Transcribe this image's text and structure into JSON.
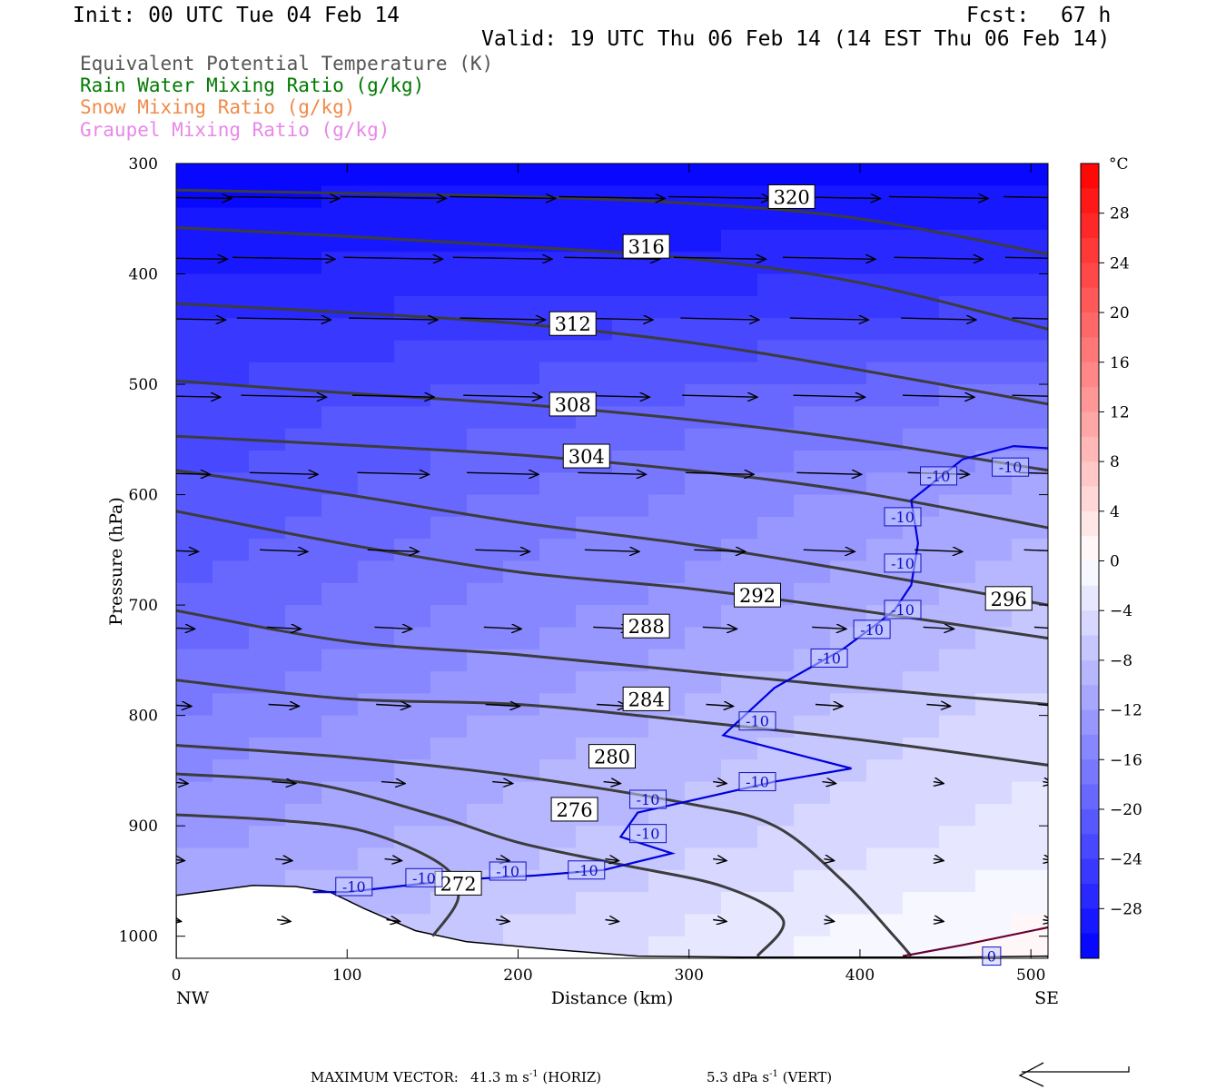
{
  "header": {
    "init": "Init: 00 UTC Tue 04 Feb 14",
    "fcst_label": "Fcst:",
    "fcst_value": "67 h",
    "valid": "Valid: 19 UTC Thu 06 Feb 14 (14 EST Thu 06 Feb 14)"
  },
  "fields": [
    {
      "label": "Equivalent Potential Temperature (K)",
      "color": "#555555"
    },
    {
      "label": "Rain Water Mixing Ratio (g/kg)",
      "color": "#007a00"
    },
    {
      "label": "Snow Mixing Ratio (g/kg)",
      "color": "#f08a4a"
    },
    {
      "label": "Graupel Mixing Ratio (g/kg)",
      "color": "#e888e8"
    }
  ],
  "footer": {
    "max_vector_label": "MAXIMUM VECTOR:",
    "horiz_value": "41.3",
    "horiz_unit": "m s",
    "horiz_exp": "-1",
    "horiz_tag": "(HORIZ)",
    "vert_value": "5.3",
    "vert_unit": "dPa s",
    "vert_exp": "-1",
    "vert_tag": "(VERT)"
  },
  "chart_data": {
    "type": "cross-section",
    "xlabel": "Distance (km)",
    "ylabel": "Pressure (hPa)",
    "xlim": [
      0,
      510
    ],
    "ylim": [
      1020,
      300
    ],
    "x_ticks": [
      0,
      100,
      200,
      300,
      400,
      500
    ],
    "y_ticks": [
      300,
      400,
      500,
      600,
      700,
      800,
      900,
      1000
    ],
    "x_end_labels": {
      "left": "NW",
      "right": "SE"
    },
    "colorbar": {
      "unit": "°C",
      "tick_labels": [
        28,
        24,
        20,
        16,
        12,
        8,
        4,
        0,
        -4,
        -8,
        -12,
        -16,
        -20,
        -24,
        -28
      ],
      "range": [
        -32,
        32
      ],
      "step": 2
    },
    "terrain_hpa": [
      [
        0,
        963
      ],
      [
        25,
        958
      ],
      [
        45,
        954
      ],
      [
        70,
        955
      ],
      [
        90,
        960
      ],
      [
        110,
        975
      ],
      [
        140,
        995
      ],
      [
        170,
        1005
      ],
      [
        220,
        1012
      ],
      [
        270,
        1018
      ],
      [
        330,
        1019
      ],
      [
        400,
        1019
      ],
      [
        460,
        1019
      ],
      [
        510,
        1018
      ]
    ],
    "temperature_field": [
      {
        "p": 300,
        "left": -31,
        "right": -31
      },
      {
        "p": 400,
        "left": -28,
        "right": -26
      },
      {
        "p": 500,
        "left": -24,
        "right": -18
      },
      {
        "p": 600,
        "left": -22,
        "right": -11
      },
      {
        "p": 700,
        "left": -20,
        "right": -8
      },
      {
        "p": 800,
        "left": -16,
        "right": -5
      },
      {
        "p": 900,
        "left": -13,
        "right": -3
      },
      {
        "p": 1000,
        "left": -10,
        "right": 1
      }
    ],
    "theta_e_contours": [
      {
        "label": "320",
        "label_at": [
          360,
          330
        ],
        "points": [
          [
            0,
            324
          ],
          [
            100,
            327
          ],
          [
            200,
            330
          ],
          [
            300,
            336
          ],
          [
            400,
            350
          ],
          [
            510,
            382
          ]
        ]
      },
      {
        "label": "316",
        "label_at": [
          275,
          375
        ],
        "points": [
          [
            0,
            358
          ],
          [
            100,
            366
          ],
          [
            200,
            375
          ],
          [
            300,
            386
          ],
          [
            400,
            408
          ],
          [
            510,
            450
          ]
        ]
      },
      {
        "label": "312",
        "label_at": [
          232,
          445
        ],
        "points": [
          [
            0,
            427
          ],
          [
            100,
            435
          ],
          [
            200,
            445
          ],
          [
            300,
            462
          ],
          [
            400,
            487
          ],
          [
            510,
            518
          ]
        ]
      },
      {
        "label": "308",
        "label_at": [
          232,
          518
        ],
        "points": [
          [
            0,
            497
          ],
          [
            100,
            508
          ],
          [
            200,
            518
          ],
          [
            300,
            532
          ],
          [
            400,
            551
          ],
          [
            510,
            578
          ]
        ]
      },
      {
        "label": "304",
        "label_at": [
          240,
          565
        ],
        "points": [
          [
            0,
            547
          ],
          [
            100,
            555
          ],
          [
            200,
            564
          ],
          [
            300,
            578
          ],
          [
            400,
            598
          ],
          [
            510,
            630
          ]
        ]
      },
      {
        "label": "292",
        "label_at": [
          340,
          691
        ],
        "points": [
          [
            0,
            615
          ],
          [
            100,
            645
          ],
          [
            200,
            670
          ],
          [
            300,
            685
          ],
          [
            400,
            705
          ],
          [
            510,
            730
          ]
        ]
      },
      {
        "label": "296",
        "label_at": [
          487,
          694
        ],
        "points": [
          [
            0,
            578
          ],
          [
            100,
            600
          ],
          [
            200,
            625
          ],
          [
            300,
            645
          ],
          [
            400,
            670
          ],
          [
            510,
            700
          ]
        ]
      },
      {
        "label": "288",
        "label_at": [
          275,
          719
        ],
        "points": [
          [
            0,
            705
          ],
          [
            100,
            733
          ],
          [
            200,
            745
          ],
          [
            300,
            760
          ],
          [
            400,
            775
          ],
          [
            510,
            790
          ]
        ]
      },
      {
        "label": "284",
        "label_at": [
          275,
          785
        ],
        "points": [
          [
            0,
            768
          ],
          [
            100,
            785
          ],
          [
            200,
            790
          ],
          [
            300,
            805
          ],
          [
            400,
            822
          ],
          [
            510,
            845
          ]
        ]
      },
      {
        "label": "280",
        "label_at": [
          255,
          837
        ],
        "points": [
          [
            0,
            827
          ],
          [
            100,
            838
          ],
          [
            200,
            855
          ],
          [
            300,
            880
          ],
          [
            350,
            900
          ],
          [
            390,
            950
          ],
          [
            420,
            1000
          ],
          [
            430,
            1018
          ]
        ]
      },
      {
        "label": "276",
        "label_at": [
          233,
          885
        ],
        "points": [
          [
            0,
            853
          ],
          [
            80,
            862
          ],
          [
            150,
            890
          ],
          [
            200,
            915
          ],
          [
            260,
            935
          ],
          [
            320,
            955
          ],
          [
            355,
            985
          ],
          [
            340,
            1018
          ]
        ]
      },
      {
        "label": "272",
        "label_at": [
          165,
          952
        ],
        "points": [
          [
            0,
            890
          ],
          [
            60,
            895
          ],
          [
            110,
            905
          ],
          [
            155,
            935
          ],
          [
            165,
            965
          ],
          [
            150,
            1000
          ]
        ]
      }
    ],
    "isotherms": [
      {
        "value": -10,
        "color": "#0000dd",
        "points": [
          [
            80,
            960
          ],
          [
            100,
            960
          ],
          [
            140,
            953
          ],
          [
            175,
            948
          ],
          [
            210,
            945
          ],
          [
            250,
            940
          ],
          [
            290,
            925
          ],
          [
            260,
            910
          ],
          [
            270,
            888
          ],
          [
            350,
            860
          ],
          [
            395,
            848
          ],
          [
            320,
            818
          ],
          [
            350,
            775
          ],
          [
            390,
            740
          ],
          [
            410,
            717
          ],
          [
            420,
            705
          ],
          [
            430,
            682
          ],
          [
            434,
            644
          ],
          [
            430,
            605
          ],
          [
            460,
            568
          ],
          [
            490,
            556
          ],
          [
            510,
            558
          ]
        ]
      },
      {
        "value": 0,
        "color": "#660033",
        "points": [
          [
            425,
            1018
          ],
          [
            460,
            1008
          ],
          [
            510,
            992
          ]
        ]
      }
    ],
    "isotherm_labels": [
      {
        "text": "-10",
        "at": [
          104,
          955
        ]
      },
      {
        "text": "-10",
        "at": [
          145,
          947
        ]
      },
      {
        "text": "-10",
        "at": [
          194,
          941
        ]
      },
      {
        "text": "-10",
        "at": [
          240,
          940
        ]
      },
      {
        "text": "-10",
        "at": [
          276,
          907
        ]
      },
      {
        "text": "-10",
        "at": [
          276,
          876
        ]
      },
      {
        "text": "-10",
        "at": [
          340,
          860
        ]
      },
      {
        "text": "-10",
        "at": [
          340,
          805
        ]
      },
      {
        "text": "-10",
        "at": [
          382,
          748
        ]
      },
      {
        "text": "-10",
        "at": [
          407,
          722
        ]
      },
      {
        "text": "-10",
        "at": [
          425,
          704
        ]
      },
      {
        "text": "-10",
        "at": [
          425,
          662
        ]
      },
      {
        "text": "-10",
        "at": [
          425,
          620
        ]
      },
      {
        "text": "-10",
        "at": [
          446,
          583
        ]
      },
      {
        "text": "-10",
        "at": [
          488,
          575
        ]
      },
      {
        "text": "0",
        "at": [
          477,
          1018
        ]
      }
    ],
    "wind_vectors": {
      "columns_km": [
        0,
        63,
        127,
        191,
        255,
        318,
        382,
        446,
        510
      ],
      "levels": [
        {
          "p": 330,
          "lengths_km": [
            65,
            65,
            62,
            62,
            62,
            60,
            60,
            58,
            52
          ]
        },
        {
          "p": 385,
          "lengths_km": [
            60,
            60,
            58,
            58,
            56,
            54,
            54,
            52,
            50
          ]
        },
        {
          "p": 440,
          "lengths_km": [
            58,
            55,
            52,
            50,
            48,
            46,
            46,
            44,
            42
          ]
        },
        {
          "p": 510,
          "lengths_km": [
            52,
            50,
            48,
            46,
            44,
            44,
            42,
            42,
            42
          ]
        },
        {
          "p": 580,
          "lengths_km": [
            40,
            40,
            42,
            42,
            40,
            40,
            38,
            36,
            34
          ]
        },
        {
          "p": 650,
          "lengths_km": [
            26,
            28,
            30,
            32,
            32,
            30,
            30,
            28,
            28
          ]
        },
        {
          "p": 720,
          "lengths_km": [
            22,
            20,
            22,
            22,
            22,
            20,
            20,
            18,
            16
          ]
        },
        {
          "p": 790,
          "lengths_km": [
            18,
            18,
            20,
            20,
            18,
            16,
            16,
            14,
            12
          ]
        },
        {
          "p": 860,
          "lengths_km": [
            14,
            14,
            14,
            12,
            10,
            8,
            8,
            6,
            6
          ]
        },
        {
          "p": 930,
          "lengths_km": [
            10,
            10,
            10,
            8,
            8,
            8,
            6,
            6,
            6
          ]
        },
        {
          "p": 985,
          "lengths_km": [
            6,
            8,
            8,
            8,
            8,
            8,
            6,
            6,
            6
          ]
        }
      ]
    }
  }
}
